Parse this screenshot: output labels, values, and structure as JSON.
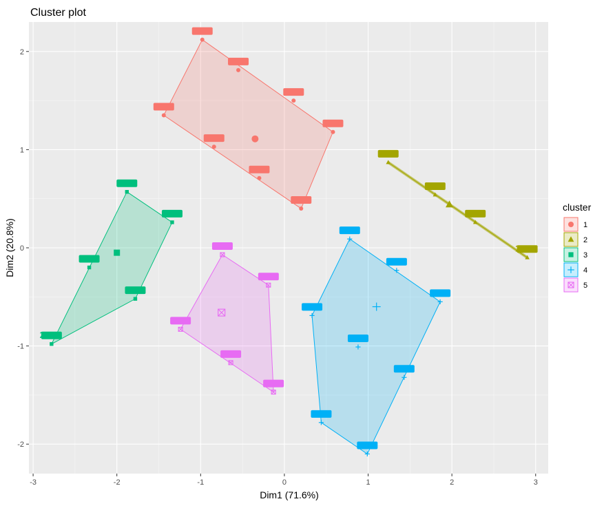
{
  "chart_data": {
    "type": "scatter",
    "title": "Cluster plot",
    "xlabel": "Dim1 (71.6%)",
    "ylabel": "Dim2 (20.8%)",
    "xlim": [
      -3.05,
      3.15
    ],
    "ylim": [
      -2.3,
      2.3
    ],
    "x_ticks": [
      -3,
      -2,
      -1,
      0,
      1,
      2,
      3
    ],
    "y_ticks": [
      -2,
      -1,
      0,
      1,
      2
    ],
    "x_tick_labels": [
      "-3",
      "-2",
      "-1",
      "0",
      "1",
      "2",
      "3"
    ],
    "y_tick_labels": [
      "-2",
      "-1",
      "0",
      "1",
      "2"
    ],
    "grid": true,
    "legend": {
      "title": "cluster",
      "position": "right",
      "items": [
        "1",
        "2",
        "3",
        "4",
        "5"
      ]
    },
    "clusters": [
      {
        "name": "1",
        "color": "#F8766D",
        "marker": "circle",
        "points": [
          [
            -0.98,
            2.12
          ],
          [
            -0.55,
            1.81
          ],
          [
            0.11,
            1.5
          ],
          [
            -1.44,
            1.35
          ],
          [
            0.58,
            1.18
          ],
          [
            -0.84,
            1.03
          ],
          [
            -0.3,
            0.71
          ],
          [
            0.2,
            0.4
          ]
        ],
        "hull": [
          [
            -0.98,
            2.12
          ],
          [
            0.58,
            1.18
          ],
          [
            0.2,
            0.4
          ],
          [
            -1.44,
            1.35
          ]
        ],
        "center": [
          -0.35,
          1.11
        ]
      },
      {
        "name": "2",
        "color": "#A3A500",
        "marker": "triangle",
        "points": [
          [
            1.24,
            0.87
          ],
          [
            1.8,
            0.54
          ],
          [
            2.28,
            0.26
          ],
          [
            2.9,
            -0.1
          ]
        ],
        "hull": [
          [
            1.24,
            0.87
          ],
          [
            2.9,
            -0.1
          ]
        ],
        "center": [
          1.97,
          0.44
        ],
        "visible_labels": [
          {
            "text": "2595",
            "x": 2.9,
            "y": -0.1
          }
        ]
      },
      {
        "name": "3",
        "color": "#00BF7D",
        "marker": "square",
        "points": [
          [
            -1.88,
            0.57
          ],
          [
            -1.34,
            0.26
          ],
          [
            -2.33,
            -0.2
          ],
          [
            -1.78,
            -0.52
          ],
          [
            -2.78,
            -0.98
          ]
        ],
        "hull": [
          [
            -1.88,
            0.57
          ],
          [
            -1.34,
            0.26
          ],
          [
            -1.78,
            -0.52
          ],
          [
            -2.78,
            -0.98
          ]
        ],
        "center": [
          -2.0,
          -0.05
        ],
        "visible_labels": [
          {
            "text": "2422",
            "x": -2.78,
            "y": -0.98
          }
        ]
      },
      {
        "name": "4",
        "color": "#00B0F6",
        "marker": "cross",
        "points": [
          [
            0.78,
            0.09
          ],
          [
            1.34,
            -0.23
          ],
          [
            1.86,
            -0.55
          ],
          [
            0.33,
            -0.69
          ],
          [
            0.88,
            -1.01
          ],
          [
            1.43,
            -1.32
          ],
          [
            0.44,
            -1.78
          ],
          [
            0.99,
            -2.1
          ]
        ],
        "hull": [
          [
            0.78,
            0.09
          ],
          [
            1.86,
            -0.55
          ],
          [
            0.99,
            -2.1
          ],
          [
            0.44,
            -1.78
          ],
          [
            0.33,
            -0.69
          ]
        ],
        "center": [
          1.1,
          -0.6
        ]
      },
      {
        "name": "5",
        "color": "#E76BF3",
        "marker": "square-cross",
        "points": [
          [
            -0.74,
            -0.07
          ],
          [
            -0.19,
            -0.38
          ],
          [
            -1.24,
            -0.83
          ],
          [
            -0.64,
            -1.17
          ],
          [
            -0.13,
            -1.47
          ]
        ],
        "hull": [
          [
            -0.74,
            -0.07
          ],
          [
            -0.19,
            -0.38
          ],
          [
            -0.13,
            -1.47
          ],
          [
            -1.24,
            -0.83
          ]
        ],
        "center": [
          -0.75,
          -0.66
        ]
      }
    ]
  }
}
